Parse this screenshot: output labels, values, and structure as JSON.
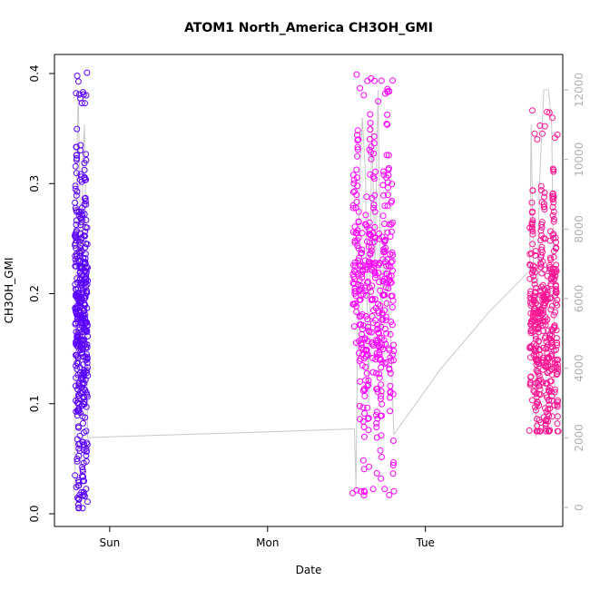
{
  "chart_data": {
    "type": "scatter",
    "title": "ATOM1 North_America CH3OH_GMI",
    "xlabel": "Date",
    "ylabel": "CH3OH_GMI",
    "x_ticks": [
      "Sun",
      "Mon",
      "Tue"
    ],
    "x_tick_positions_days": [
      1,
      2,
      3
    ],
    "xlim_days": [
      0.65,
      3.87
    ],
    "ylim": [
      0,
      0.4
    ],
    "y_ticks": [
      0.0,
      0.1,
      0.2,
      0.3,
      0.4
    ],
    "y2lim": [
      0,
      12000
    ],
    "y2_ticks": [
      0,
      2000,
      4000,
      6000,
      8000,
      10000,
      12000
    ],
    "marker_colors": [
      "#5a00ff",
      "#ff00ff",
      "#ff1493"
    ],
    "altitude_color": "#c8c8c8",
    "flight_segments": [
      {
        "x_start": 0.78,
        "x_end": 0.86,
        "y_min": 0.005,
        "y_max": 0.402,
        "y_center": 0.17,
        "color_index": 0
      },
      {
        "x_start": 2.54,
        "x_end": 2.8,
        "y_min": 0.015,
        "y_max": 0.402,
        "y_center": 0.2,
        "color_index": 1
      },
      {
        "x_start": 3.66,
        "x_end": 3.84,
        "y_min": 0.075,
        "y_max": 0.367,
        "y_center": 0.17,
        "color_index": 2
      }
    ],
    "altitude_path": [
      [
        0.78,
        500
      ],
      [
        0.79,
        9000
      ],
      [
        0.8,
        12000
      ],
      [
        0.81,
        9500
      ],
      [
        0.82,
        6000
      ],
      [
        0.83,
        10000
      ],
      [
        0.84,
        11000
      ],
      [
        0.85,
        8000
      ],
      [
        0.86,
        2000
      ],
      [
        1.0,
        2030
      ],
      [
        1.5,
        2100
      ],
      [
        2.0,
        2170
      ],
      [
        2.55,
        2260
      ],
      [
        2.56,
        600
      ],
      [
        2.58,
        9000
      ],
      [
        2.6,
        11200
      ],
      [
        2.62,
        9600
      ],
      [
        2.64,
        3000
      ],
      [
        2.66,
        11000
      ],
      [
        2.68,
        7000
      ],
      [
        2.7,
        12000
      ],
      [
        2.72,
        5000
      ],
      [
        2.74,
        8000
      ],
      [
        2.76,
        6000
      ],
      [
        2.78,
        5000
      ],
      [
        2.8,
        2100
      ],
      [
        3.1,
        4000
      ],
      [
        3.4,
        5600
      ],
      [
        3.66,
        6800
      ],
      [
        3.67,
        11000
      ],
      [
        3.7,
        2000
      ],
      [
        3.72,
        9000
      ],
      [
        3.75,
        12000
      ],
      [
        3.78,
        12000
      ],
      [
        3.8,
        11000
      ],
      [
        3.82,
        3000
      ],
      [
        3.84,
        2500
      ]
    ]
  }
}
